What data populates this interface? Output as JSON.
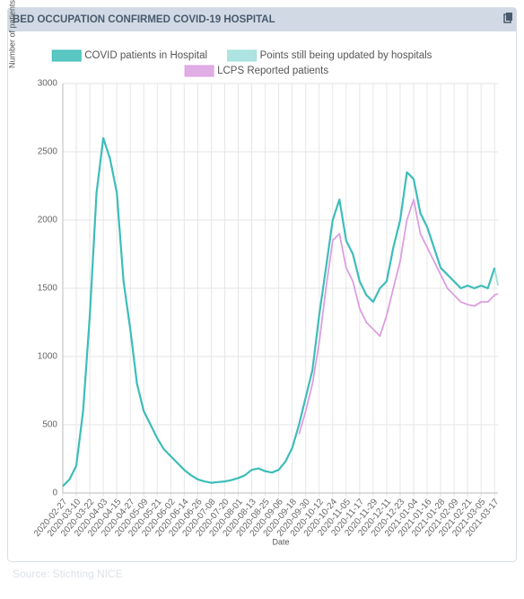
{
  "chart_data": {
    "type": "line",
    "title": "BED OCCUPATION CONFIRMED COVID-19 HOSPITAL",
    "x_label": "Date",
    "y_label": "Number of patients",
    "source": "Source: Stichting NICE",
    "x": [
      "2020-02-27",
      "2020-03-04",
      "2020-03-10",
      "2020-03-16",
      "2020-03-22",
      "2020-03-28",
      "2020-04-03",
      "2020-04-09",
      "2020-04-15",
      "2020-04-21",
      "2020-04-27",
      "2020-05-03",
      "2020-05-09",
      "2020-05-15",
      "2020-05-21",
      "2020-05-27",
      "2020-06-02",
      "2020-06-08",
      "2020-06-14",
      "2020-06-20",
      "2020-06-26",
      "2020-07-02",
      "2020-07-08",
      "2020-07-14",
      "2020-07-20",
      "2020-07-26",
      "2020-08-01",
      "2020-08-07",
      "2020-08-13",
      "2020-08-19",
      "2020-08-25",
      "2020-08-31",
      "2020-09-06",
      "2020-09-12",
      "2020-09-18",
      "2020-09-24",
      "2020-09-30",
      "2020-10-06",
      "2020-10-12",
      "2020-10-18",
      "2020-10-24",
      "2020-10-30",
      "2020-11-05",
      "2020-11-11",
      "2020-11-17",
      "2020-11-23",
      "2020-11-29",
      "2020-12-05",
      "2020-12-11",
      "2020-12-17",
      "2020-12-23",
      "2020-12-29",
      "2021-01-04",
      "2021-01-10",
      "2021-01-16",
      "2021-01-22",
      "2021-01-28",
      "2021-02-03",
      "2021-02-09",
      "2021-02-15",
      "2021-02-21",
      "2021-02-27",
      "2021-03-05",
      "2021-03-11",
      "2021-03-17",
      "2021-03-20"
    ],
    "series": [
      {
        "name": "COVID patients in Hospital",
        "color": "#3dbdb9",
        "values": [
          50,
          100,
          200,
          600,
          1300,
          2200,
          2600,
          2450,
          2200,
          1550,
          1200,
          800,
          600,
          500,
          400,
          320,
          270,
          220,
          170,
          130,
          100,
          85,
          75,
          80,
          85,
          95,
          110,
          130,
          170,
          180,
          160,
          150,
          170,
          230,
          330,
          500,
          700,
          900,
          1300,
          1650,
          2000,
          2150,
          1850,
          1750,
          1550,
          1450,
          1400,
          1500,
          1550,
          1800,
          2000,
          2350,
          2300,
          2050,
          1950,
          1800,
          1650,
          1600,
          1550,
          1500,
          1520,
          1500,
          1520,
          1500,
          1650,
          null
        ]
      },
      {
        "name": "Points still being updated by hospitals",
        "color": "#9fdfdc",
        "values": [
          null,
          null,
          null,
          null,
          null,
          null,
          null,
          null,
          null,
          null,
          null,
          null,
          null,
          null,
          null,
          null,
          null,
          null,
          null,
          null,
          null,
          null,
          null,
          null,
          null,
          null,
          null,
          null,
          null,
          null,
          null,
          null,
          null,
          null,
          null,
          null,
          null,
          null,
          null,
          null,
          null,
          null,
          null,
          null,
          null,
          null,
          null,
          null,
          null,
          null,
          null,
          null,
          null,
          null,
          null,
          null,
          null,
          null,
          null,
          null,
          null,
          null,
          null,
          null,
          1650,
          1520
        ]
      },
      {
        "name": "LCPS Reported patients",
        "color": "#dc9fe0",
        "values": [
          null,
          null,
          null,
          null,
          null,
          null,
          null,
          null,
          null,
          null,
          null,
          null,
          null,
          null,
          null,
          null,
          null,
          null,
          null,
          null,
          null,
          null,
          null,
          null,
          null,
          null,
          null,
          null,
          null,
          null,
          null,
          null,
          null,
          null,
          null,
          430,
          600,
          800,
          1100,
          1500,
          1850,
          1900,
          1650,
          1550,
          1350,
          1250,
          1200,
          1150,
          1300,
          1500,
          1700,
          2000,
          2150,
          1900,
          1800,
          1700,
          1600,
          1500,
          1450,
          1400,
          1380,
          1370,
          1400,
          1400,
          1450,
          1460
        ]
      }
    ],
    "xlim": [
      "2020-02-27",
      "2021-03-20"
    ],
    "xticks": [
      "2020-02-27",
      "2020-03-10",
      "2020-03-22",
      "2020-04-03",
      "2020-04-15",
      "2020-04-27",
      "2020-05-09",
      "2020-05-21",
      "2020-06-02",
      "2020-06-14",
      "2020-06-26",
      "2020-07-08",
      "2020-07-20",
      "2020-08-01",
      "2020-08-13",
      "2020-08-25",
      "2020-09-06",
      "2020-09-18",
      "2020-09-30",
      "2020-10-12",
      "2020-10-24",
      "2020-11-05",
      "2020-11-17",
      "2020-11-29",
      "2020-12-11",
      "2020-12-23",
      "2021-01-04",
      "2021-01-16",
      "2021-01-28",
      "2021-02-09",
      "2021-02-21",
      "2021-03-05",
      "2021-03-17"
    ],
    "ylim": [
      0,
      3000
    ],
    "yticks": [
      0,
      500,
      1000,
      1500,
      2000,
      2500,
      3000
    ],
    "grid": true,
    "legend": "top"
  }
}
